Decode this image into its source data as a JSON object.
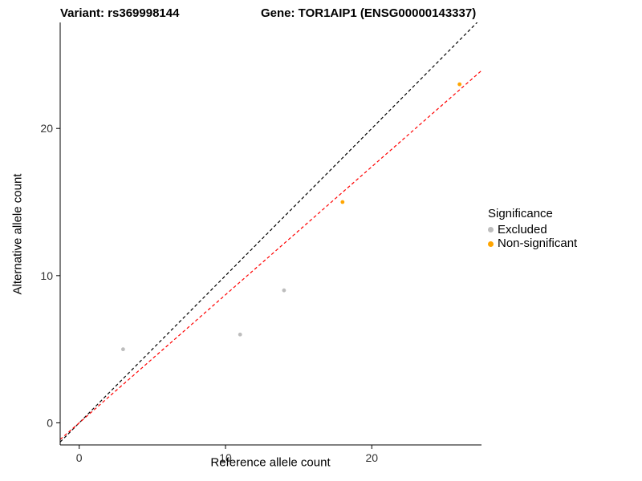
{
  "titles": {
    "left": "Variant: rs369998144",
    "right": "Gene: TOR1AIP1 (ENSG00000143337)"
  },
  "chart_data": {
    "type": "scatter",
    "xlabel": "Reference allele count",
    "ylabel": "Alternative allele count",
    "xlim": [
      -1.3,
      27.5
    ],
    "ylim": [
      -1.5,
      27.2
    ],
    "xticks": [
      0,
      10,
      20
    ],
    "yticks": [
      0,
      10,
      20
    ],
    "grid": false,
    "legend": {
      "title": "Significance",
      "position": "right"
    },
    "series": [
      {
        "name": "Excluded",
        "color": "#bdbdbd",
        "points": [
          [
            3,
            5
          ],
          [
            11,
            6
          ],
          [
            14,
            9
          ]
        ]
      },
      {
        "name": "Non-significant",
        "color": "#ffa500",
        "points": [
          [
            18,
            15
          ],
          [
            26,
            23
          ]
        ]
      }
    ],
    "lines": [
      {
        "name": "identity-line",
        "color": "#000000",
        "dash": "4 3",
        "slope": 1.0,
        "intercept": 0
      },
      {
        "name": "fit-line",
        "color": "#ff0000",
        "dash": "4 3",
        "slope": 0.87,
        "intercept": 0
      }
    ],
    "axis_color": "#000000"
  }
}
